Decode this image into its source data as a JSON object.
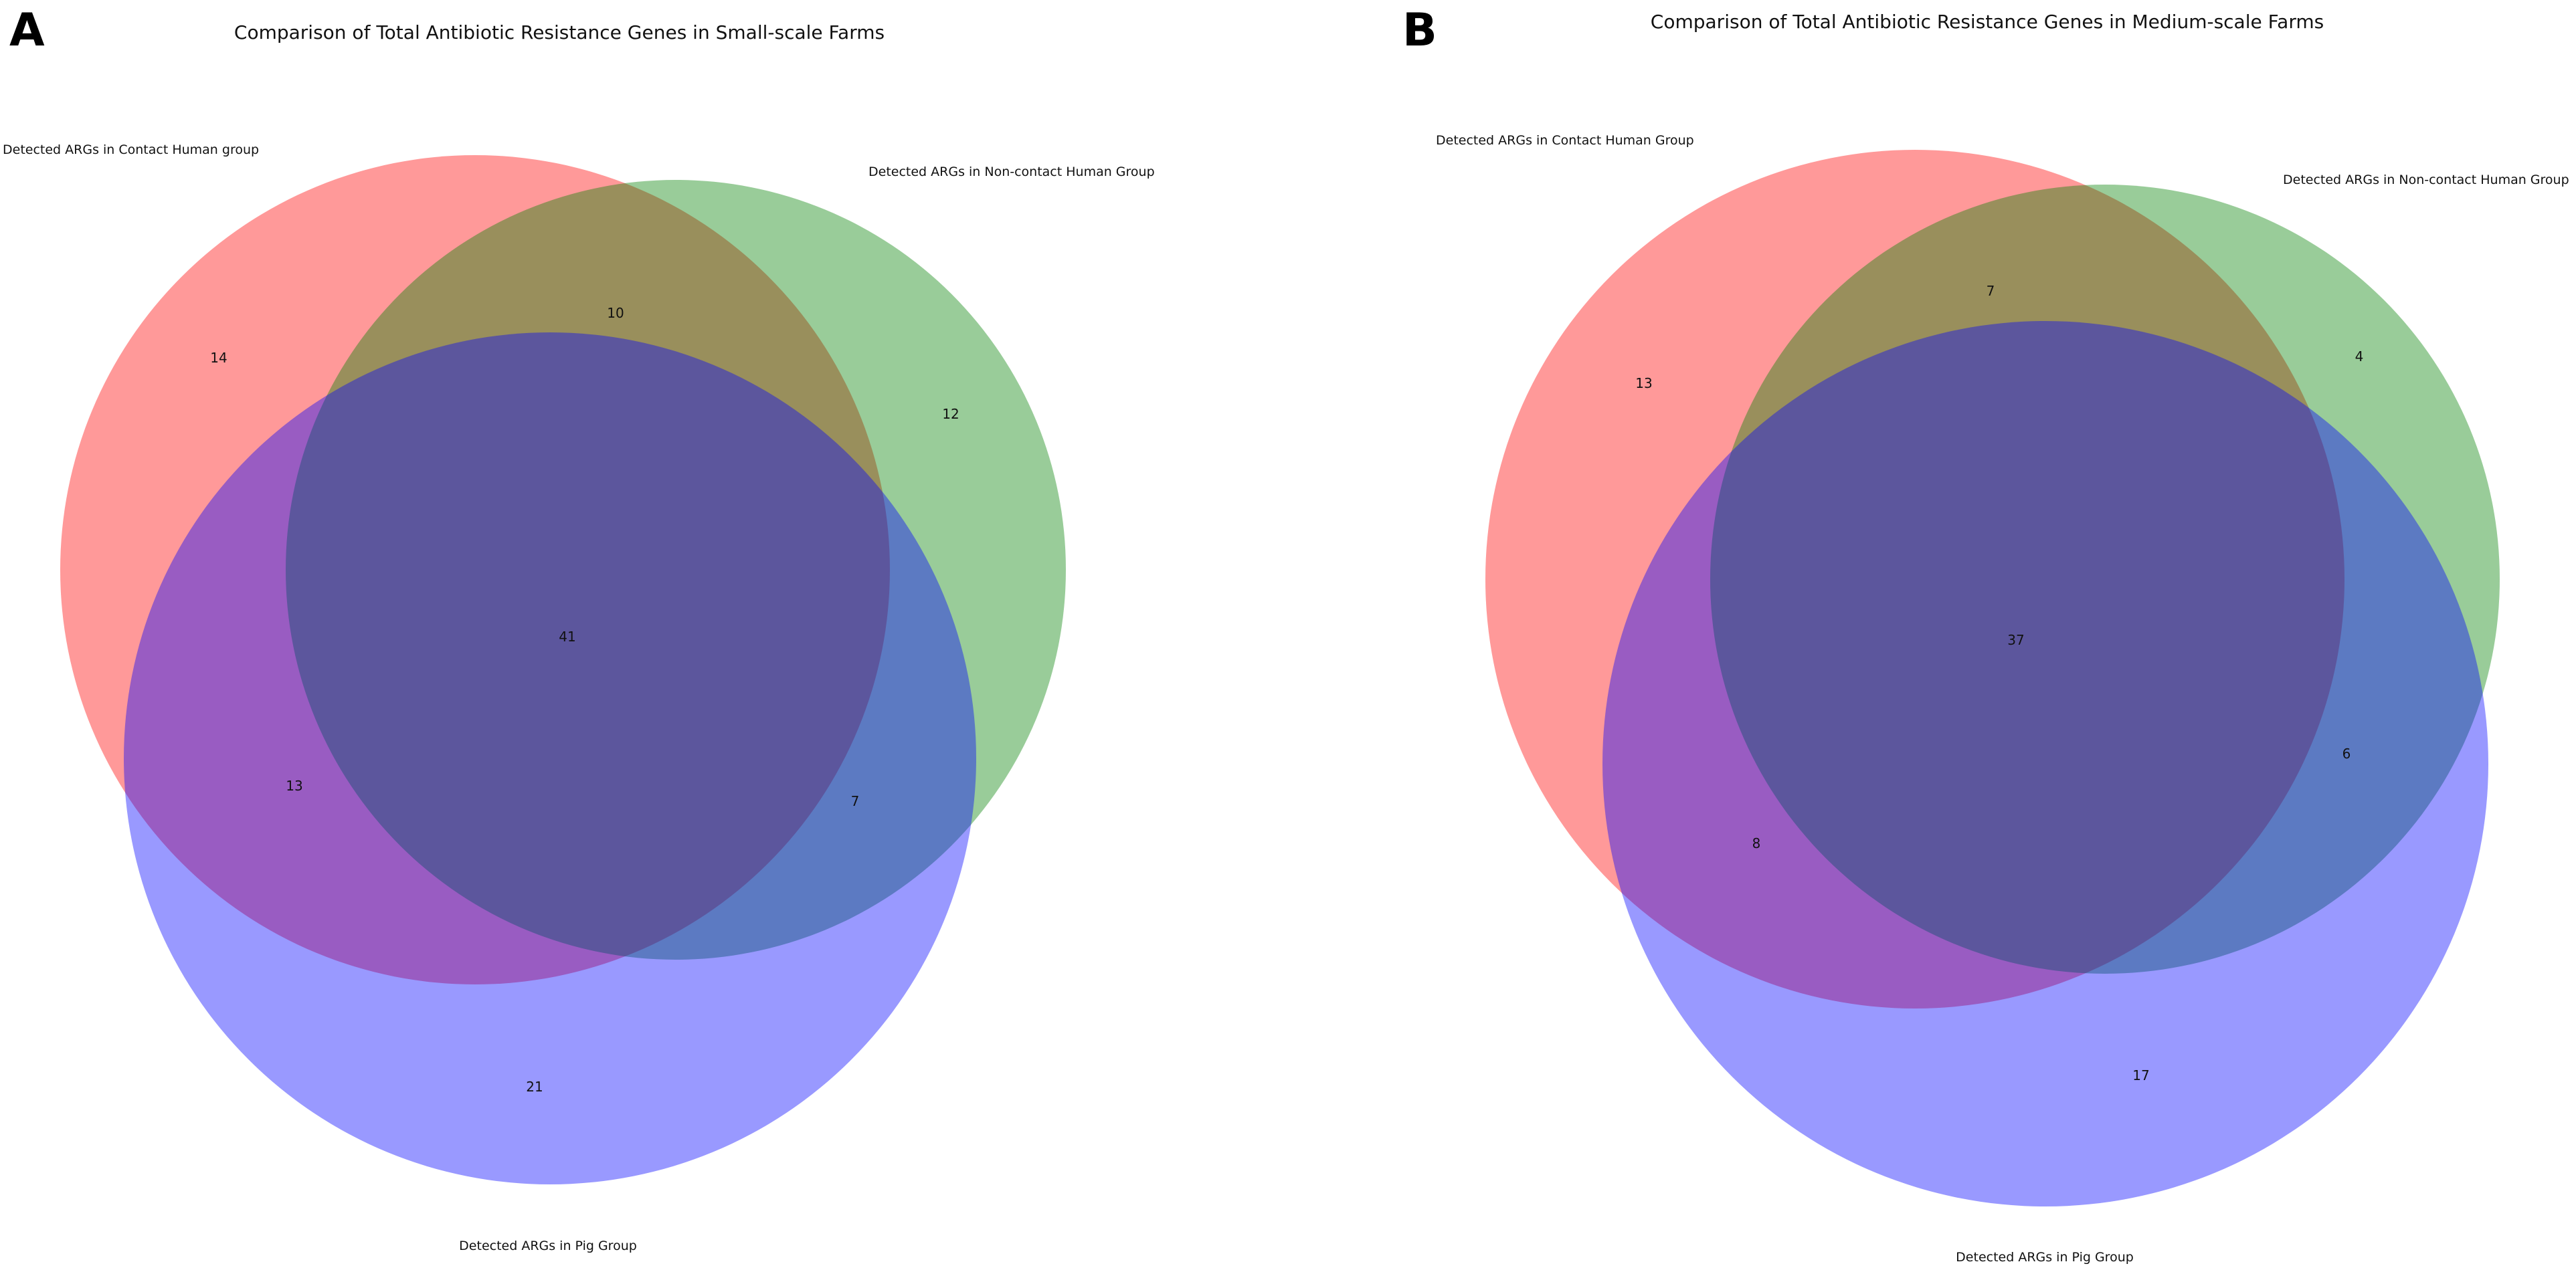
{
  "panels": [
    {
      "letter": "A",
      "title": "Comparison of Total Antibiotic Resistance Genes in Small-scale Farms",
      "sets": [
        {
          "label": "Detected ARGs in Contact Human group",
          "color": "#ff0000"
        },
        {
          "label": "Detected ARGs in Non-contact Human Group",
          "color": "#008000"
        },
        {
          "label": "Detected ARGs in Pig Group",
          "color": "#0000ff"
        }
      ],
      "regions": {
        "contact_only": "14",
        "contact_noncontact": "10",
        "noncontact_only": "12",
        "all_three": "41",
        "contact_pig": "13",
        "noncontact_pig": "7",
        "pig_only": "21"
      }
    },
    {
      "letter": "B",
      "title": "Comparison of Total Antibiotic Resistance Genes in Medium-scale Farms",
      "sets": [
        {
          "label": "Detected ARGs in Contact Human Group",
          "color": "#ff0000"
        },
        {
          "label": "Detected ARGs in Non-contact Human Group",
          "color": "#008000"
        },
        {
          "label": "Detected ARGs in Pig Group",
          "color": "#0000ff"
        }
      ],
      "regions": {
        "contact_only": "13",
        "contact_noncontact": "7",
        "noncontact_only": "4",
        "all_three": "37",
        "contact_pig": "8",
        "noncontact_pig": "6",
        "pig_only": "17"
      }
    }
  ]
}
